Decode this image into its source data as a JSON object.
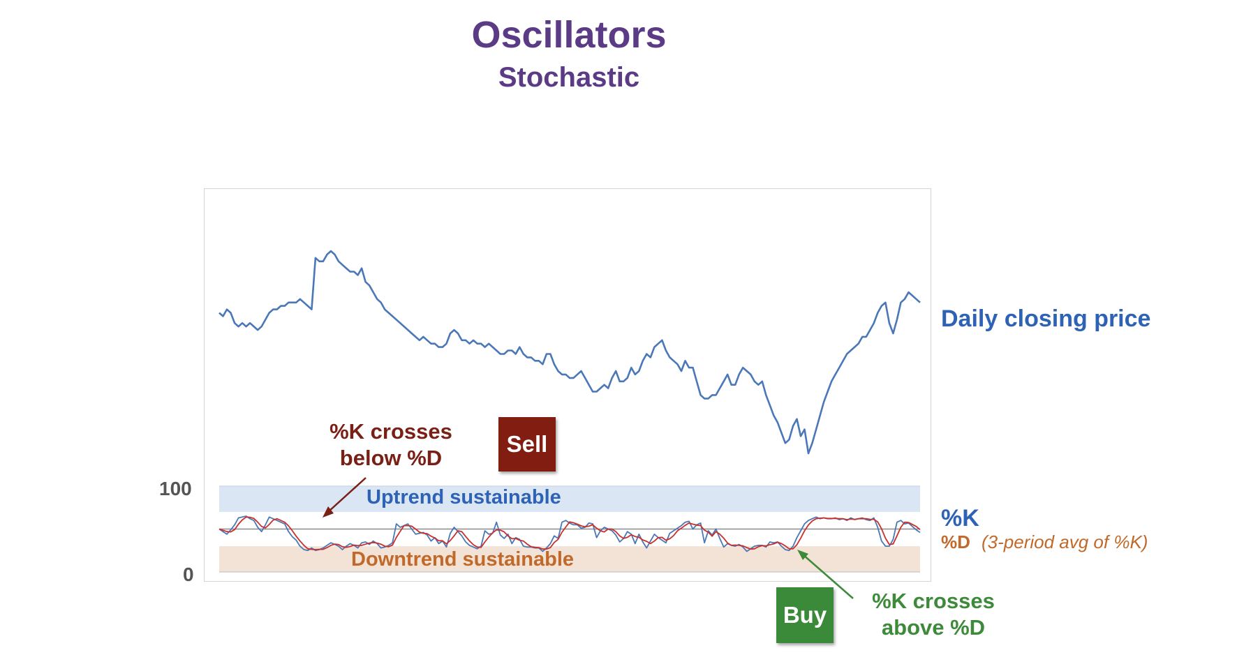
{
  "header": {
    "title": "Oscillators",
    "subtitle": "Stochastic"
  },
  "colors": {
    "title": "#5b3a86",
    "price_line": "#4a77b8",
    "k_line": "#4a77b8",
    "d_line": "#c9302c",
    "uptrend_band": "#dbe6f4",
    "downtrend_band": "#f3e3d6",
    "sell": "#821d12",
    "buy": "#3b8a39"
  },
  "labels": {
    "price": "Daily closing price",
    "k": "%K",
    "d": "%D",
    "d_note": "(3-period avg of %K)",
    "uptrend": "Uptrend sustainable",
    "downtrend": "Downtrend sustainable",
    "sell_annotation": "%K crosses below %D",
    "buy_annotation": "%K crosses above %D",
    "sell_button": "Sell",
    "buy_button": "Buy"
  },
  "chart_data": {
    "type": "line",
    "title": "Oscillators",
    "subtitle": "Stochastic",
    "oscillator_axis": {
      "ticks": [
        "100",
        "0"
      ],
      "range": [
        0,
        100
      ],
      "midline": 50,
      "uptrend_band": [
        70,
        100
      ],
      "downtrend_band": [
        0,
        30
      ]
    },
    "price_series": {
      "name": "Daily closing price",
      "values": [
        63,
        62,
        64,
        63,
        60,
        59,
        60,
        59,
        60,
        59,
        58,
        59,
        61,
        63,
        64,
        64,
        65,
        65,
        66,
        66,
        66,
        67,
        66,
        65,
        64,
        79,
        78,
        78,
        80,
        81,
        80,
        78,
        77,
        76,
        75,
        75,
        74,
        76,
        72,
        71,
        69,
        67,
        66,
        64,
        63,
        62,
        61,
        60,
        59,
        58,
        57,
        56,
        55,
        56,
        55,
        54,
        54,
        53,
        53,
        54,
        57,
        58,
        57,
        55,
        55,
        54,
        55,
        54,
        54,
        53,
        54,
        53,
        52,
        51,
        51,
        52,
        52,
        51,
        53,
        51,
        50,
        50,
        49,
        49,
        48,
        51,
        51,
        48,
        46,
        45,
        45,
        44,
        44,
        45,
        46,
        44,
        42,
        40,
        40,
        41,
        42,
        41,
        44,
        46,
        43,
        43,
        44,
        47,
        45,
        46,
        49,
        51,
        50,
        53,
        54,
        55,
        52,
        50,
        49,
        48,
        46,
        49,
        47,
        47,
        43,
        39,
        38,
        38,
        39,
        39,
        41,
        43,
        45,
        42,
        42,
        45,
        47,
        46,
        45,
        43,
        42,
        43,
        39,
        36,
        33,
        31,
        28,
        25,
        26,
        30,
        32,
        27,
        29,
        22,
        25,
        29,
        33,
        37,
        40,
        43,
        45,
        47,
        49,
        51,
        52,
        53,
        54,
        56,
        56,
        58,
        60,
        63,
        65,
        66,
        60,
        57,
        61,
        66,
        67,
        69,
        68,
        67,
        66
      ]
    },
    "oscillator_series": [
      {
        "name": "%K",
        "values": [
          50,
          47,
          44,
          49,
          55,
          63,
          64,
          65,
          62,
          60,
          52,
          47,
          55,
          64,
          62,
          60,
          58,
          56,
          47,
          41,
          37,
          30,
          26,
          25,
          28,
          25,
          26,
          28,
          31,
          34,
          32,
          30,
          26,
          30,
          33,
          31,
          28,
          34,
          35,
          32,
          36,
          33,
          28,
          29,
          31,
          34,
          56,
          52,
          54,
          56,
          50,
          44,
          45,
          46,
          43,
          36,
          40,
          33,
          36,
          29,
          45,
          52,
          47,
          42,
          35,
          31,
          29,
          27,
          30,
          48,
          44,
          45,
          58,
          43,
          39,
          44,
          33,
          40,
          38,
          30,
          29,
          29,
          28,
          28,
          24,
          28,
          33,
          42,
          39,
          58,
          60,
          57,
          55,
          55,
          51,
          52,
          57,
          56,
          40,
          48,
          52,
          50,
          48,
          43,
          35,
          39,
          47,
          44,
          33,
          44,
          35,
          28,
          36,
          44,
          40,
          37,
          34,
          45,
          48,
          51,
          54,
          58,
          59,
          50,
          55,
          57,
          34,
          48,
          43,
          50,
          39,
          29,
          33,
          31,
          30,
          32,
          29,
          24,
          27,
          30,
          31,
          31,
          29,
          35,
          34,
          35,
          30,
          26,
          25,
          30,
          40,
          48,
          56,
          60,
          62,
          64,
          62,
          63,
          62,
          62,
          63,
          61,
          62,
          60,
          63,
          61,
          62,
          63,
          61,
          60,
          63,
          52,
          36,
          30,
          30,
          38,
          58,
          60,
          56,
          57,
          53,
          49,
          46
        ]
      },
      {
        "name": "%D",
        "smoothing": "3-period avg of %K"
      }
    ],
    "annotations": [
      {
        "text": "%K crosses below %D",
        "signal": "Sell"
      },
      {
        "text": "%K crosses above %D",
        "signal": "Buy"
      }
    ]
  }
}
